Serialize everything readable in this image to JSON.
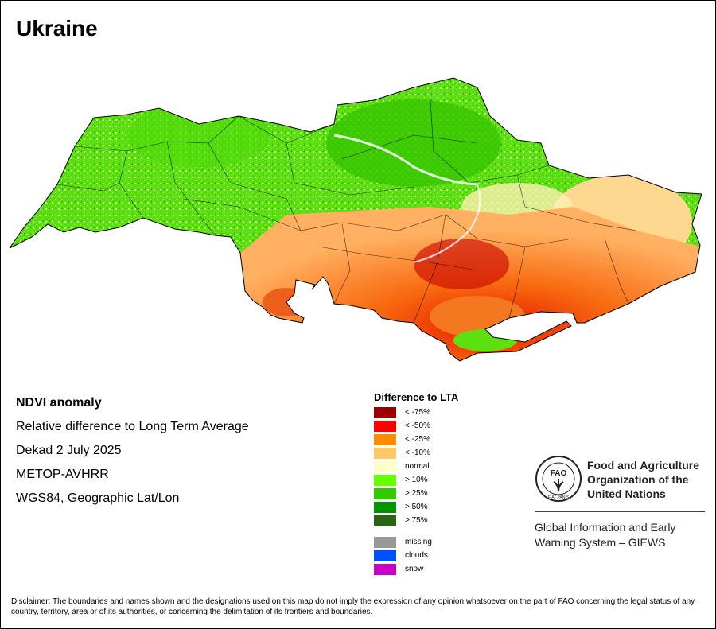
{
  "title": "Ukraine",
  "info": {
    "heading": "NDVI anomaly",
    "line1": "Relative difference to Long Term Average",
    "line2": "Dekad 2 July 2025",
    "line3": "METOP-AVHRR",
    "line4": "WGS84, Geographic Lat/Lon"
  },
  "legend": {
    "title": "Difference to LTA",
    "items": [
      {
        "label": "< -75%",
        "color": "#990000"
      },
      {
        "label": "< -50%",
        "color": "#ff0000"
      },
      {
        "label": "< -25%",
        "color": "#ff8c00"
      },
      {
        "label": "< -10%",
        "color": "#ffc864"
      },
      {
        "label": "normal",
        "color": "#ffffc8"
      },
      {
        "label": "> 10%",
        "color": "#64ff00"
      },
      {
        "label": "> 25%",
        "color": "#32c800"
      },
      {
        "label": "> 50%",
        "color": "#009600"
      },
      {
        "label": "> 75%",
        "color": "#286414"
      }
    ],
    "extra": [
      {
        "label": "missing",
        "color": "#999999"
      },
      {
        "label": "clouds",
        "color": "#0050ff"
      },
      {
        "label": "snow",
        "color": "#c800c8"
      }
    ]
  },
  "fao": {
    "name_line1": "Food and Agriculture",
    "name_line2": "Organization of the",
    "name_line3": "United Nations",
    "giews_line1": "Global Information and Early",
    "giews_line2": "Warning System – GIEWS",
    "logo_text": "FAO",
    "logo_motto": "FIAT PANIS"
  },
  "disclaimer": "Disclaimer: The boundaries and names shown and the designations used on this map do not imply the expression of any opinion whatsoever on the part of FAO concerning the legal status of any country, territory, area or of its authorities, or concerning the delimitation of its frontiers and boundaries."
}
